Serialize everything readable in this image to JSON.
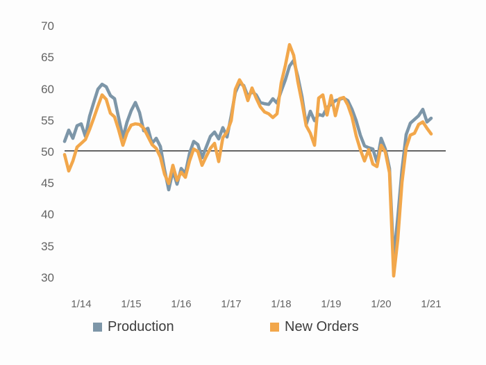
{
  "chart_data": {
    "type": "line",
    "title": "",
    "y_axis": {
      "min": 30,
      "max": 70,
      "step": 5,
      "ticks": [
        70,
        65,
        60,
        55,
        50,
        45,
        40,
        35,
        30
      ]
    },
    "x_tick_labels": [
      "1/14",
      "1/15",
      "1/16",
      "1/17",
      "1/18",
      "1/19",
      "1/20",
      "1/21"
    ],
    "x_tick_indices": [
      4,
      16,
      28,
      40,
      52,
      64,
      76,
      88
    ],
    "frequency": "monthly",
    "reference_line": 50,
    "grid": "off",
    "legend_position": "bottom",
    "background_color": "#fdfdfd",
    "reference_line_color": "#4d4d4d",
    "axis_text_color": "#636363",
    "legend_text_color": "#3d3d3d",
    "series": [
      {
        "name": "Production",
        "color": "#7D96A8",
        "values": [
          51.5,
          53.3,
          52.0,
          54.0,
          54.3,
          52.3,
          55.5,
          57.7,
          59.8,
          60.6,
          60.2,
          58.8,
          58.3,
          55.2,
          52.1,
          54.6,
          56.4,
          57.7,
          56.1,
          53.2,
          53.6,
          51.2,
          52.0,
          50.7,
          47.0,
          43.8,
          46.8,
          44.7,
          47.2,
          46.4,
          49.6,
          51.5,
          51.0,
          48.9,
          50.6,
          52.3,
          53.0,
          51.9,
          53.7,
          52.2,
          55.6,
          59.3,
          60.8,
          60.4,
          58.7,
          59.4,
          58.9,
          57.7,
          57.5,
          57.4,
          58.3,
          57.6,
          59.5,
          61.3,
          63.5,
          64.4,
          61.8,
          58.6,
          54.2,
          56.3,
          54.8,
          55.8,
          55.6,
          56.9,
          57.4,
          58.0,
          58.2,
          58.4,
          58.0,
          56.6,
          54.8,
          52.5,
          50.8,
          50.5,
          50.3,
          48.2,
          52.0,
          50.3,
          47.2,
          32.8,
          39.5,
          47.0,
          52.6,
          54.4,
          55.0,
          55.6,
          56.6,
          54.6,
          55.2
        ]
      },
      {
        "name": "New Orders",
        "color": "#F2A74B",
        "values": [
          49.4,
          46.8,
          48.4,
          50.6,
          51.2,
          51.8,
          53.4,
          55.2,
          57.1,
          58.9,
          58.2,
          56.0,
          55.4,
          53.3,
          50.9,
          52.9,
          54.1,
          54.3,
          54.2,
          53.6,
          52.3,
          51.0,
          50.4,
          49.0,
          46.3,
          44.8,
          47.7,
          45.3,
          46.6,
          45.8,
          48.4,
          50.3,
          49.9,
          47.7,
          49.1,
          50.4,
          51.2,
          48.3,
          52.1,
          53.0,
          54.8,
          59.8,
          61.3,
          60.2,
          58.0,
          60.0,
          58.4,
          57.0,
          56.2,
          55.9,
          55.3,
          55.9,
          60.8,
          63.6,
          66.9,
          65.2,
          61.0,
          57.7,
          54.0,
          52.8,
          50.9,
          58.4,
          58.9,
          55.7,
          58.8,
          55.6,
          58.3,
          58.5,
          57.3,
          55.4,
          52.4,
          50.2,
          48.4,
          50.2,
          47.9,
          47.5,
          50.9,
          49.8,
          46.5,
          30.1,
          36.0,
          45.0,
          50.5,
          52.5,
          52.8,
          54.2,
          54.6,
          53.6,
          52.7
        ]
      }
    ]
  }
}
